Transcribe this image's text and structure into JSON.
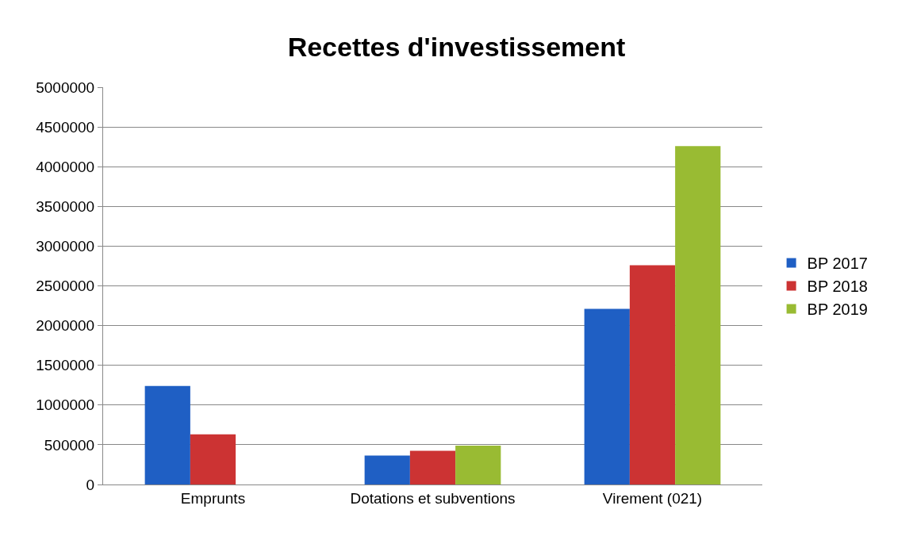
{
  "chart_data": {
    "type": "bar",
    "title": "Recettes d'investissement",
    "categories": [
      "Emprunts",
      "Dotations et subventions",
      "Virement (021)"
    ],
    "series": [
      {
        "name": "BP 2017",
        "color": "#1f5fc4",
        "values": [
          1240000,
          365000,
          2210000
        ]
      },
      {
        "name": "BP 2018",
        "color": "#cc3333",
        "values": [
          630000,
          425000,
          2760000
        ]
      },
      {
        "name": "BP 2019",
        "color": "#99bb33",
        "values": [
          null,
          490000,
          4260000
        ]
      }
    ],
    "ylim": [
      0,
      5000000
    ],
    "yticks": [
      0,
      500000,
      1000000,
      1500000,
      2000000,
      2500000,
      3000000,
      3500000,
      4000000,
      4500000,
      5000000
    ],
    "grid": "y",
    "legend": "right"
  }
}
